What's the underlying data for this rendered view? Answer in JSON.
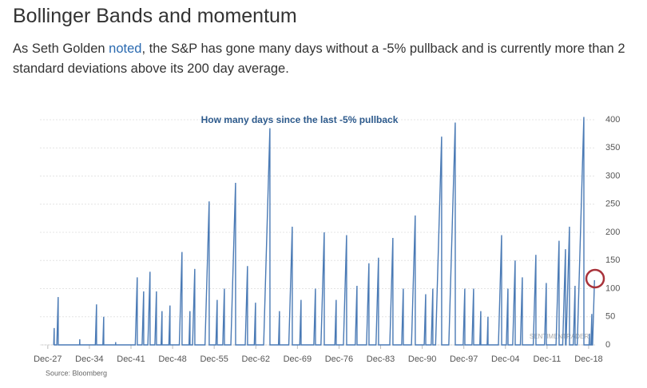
{
  "header": {
    "title": "Bollinger Bands and momentum",
    "paragraph": [
      "As Seth Golden ",
      "noted",
      ", the S&P has gone many days without a -5% pullback and is currently more than 2 standard deviations above its 200 day average."
    ]
  },
  "chart_data": {
    "type": "line",
    "title": "How many days since the last -5% pullback",
    "watermark": "SENTIMENTRADER",
    "source": "Source: Bloomberg",
    "color": "#4a7ab5",
    "grid": true,
    "xlim": [
      1926.6,
      2020
    ],
    "ylim": [
      0,
      400
    ],
    "yticks": [
      0,
      50,
      100,
      150,
      200,
      250,
      300,
      350,
      400
    ],
    "xticks": [
      {
        "value": 1927.92,
        "label": "Dec-27"
      },
      {
        "value": 1934.92,
        "label": "Dec-34"
      },
      {
        "value": 1941.92,
        "label": "Dec-41"
      },
      {
        "value": 1948.92,
        "label": "Dec-48"
      },
      {
        "value": 1955.92,
        "label": "Dec-55"
      },
      {
        "value": 1962.92,
        "label": "Dec-62"
      },
      {
        "value": 1969.92,
        "label": "Dec-69"
      },
      {
        "value": 1976.92,
        "label": "Dec-76"
      },
      {
        "value": 1983.92,
        "label": "Dec-83"
      },
      {
        "value": 1990.92,
        "label": "Dec-90"
      },
      {
        "value": 1997.92,
        "label": "Dec-97"
      },
      {
        "value": 2004.92,
        "label": "Dec-04"
      },
      {
        "value": 2011.92,
        "label": "Dec-11"
      },
      {
        "value": 2018.92,
        "label": "Dec-18"
      }
    ],
    "x": [
      1928.92,
      1929.0,
      1929.01,
      1929.44,
      1929.67,
      1929.68,
      1933.27,
      1933.3,
      1933.31,
      1935.92,
      1936.12,
      1936.13,
      1937.19,
      1937.33,
      1937.34,
      1939.33,
      1939.34,
      1939.35,
      1942.64,
      1942.97,
      1942.98,
      1943.79,
      1944.05,
      1944.06,
      1944.76,
      1945.12,
      1945.13,
      1945.94,
      1946.2,
      1946.21,
      1946.98,
      1947.14,
      1947.15,
      1948.29,
      1948.48,
      1948.49,
      1950.05,
      1950.5,
      1950.51,
      1951.68,
      1951.84,
      1951.85,
      1952.28,
      1952.65,
      1952.66,
      1954.37,
      1955.07,
      1955.08,
      1956.2,
      1956.42,
      1956.43,
      1957.36,
      1957.63,
      1957.64,
      1958.72,
      1959.51,
      1959.52,
      1961.14,
      1961.52,
      1961.53,
      1962.66,
      1962.87,
      1962.88,
      1964.24,
      1965.29,
      1965.3,
      1966.74,
      1966.9,
      1966.91,
      1968.47,
      1969.05,
      1969.06,
      1970.31,
      1970.53,
      1970.54,
      1972.68,
      1972.95,
      1972.96,
      1973.88,
      1974.43,
      1974.44,
      1976.22,
      1976.44,
      1976.45,
      1977.66,
      1978.19,
      1978.2,
      1979.65,
      1979.94,
      1979.95,
      1981.55,
      1981.95,
      1981.96,
      1983.14,
      1983.56,
      1983.57,
      1985.46,
      1985.98,
      1985.99,
      1987.46,
      1987.73,
      1987.74,
      1989.11,
      1989.74,
      1989.75,
      1991.25,
      1991.5,
      1991.51,
      1992.43,
      1992.7,
      1992.71,
      1993.17,
      1994.18,
      1994.19,
      1995.39,
      1996.47,
      1996.48,
      1997.81,
      1998.08,
      1998.09,
      1999.29,
      1999.56,
      1999.57,
      2000.61,
      2000.77,
      2000.78,
      2001.84,
      2001.98,
      2001.99,
      2003.74,
      2004.27,
      2004.28,
      2005.07,
      2005.34,
      2005.35,
      2006.14,
      2006.55,
      2006.56,
      2007.43,
      2007.76,
      2007.77,
      2009.6,
      2010.04,
      2010.05,
      2011.49,
      2011.79,
      2011.8,
      2013.43,
      2013.94,
      2013.95,
      2014.55,
      2015.02,
      2015.03,
      2015.11,
      2015.69,
      2015.7,
      2016.34,
      2016.63,
      2016.64,
      2017.0,
      2018.11,
      2018.12,
      2018.99,
      2019.05,
      2019.06,
      2019.3,
      2019.45,
      2019.46,
      2019.58,
      2019.9
    ],
    "values": [
      0,
      30,
      0,
      0,
      85,
      0,
      0,
      10,
      0,
      0,
      72,
      0,
      0,
      50,
      0,
      0,
      5,
      0,
      0,
      120,
      0,
      0,
      95,
      0,
      0,
      130,
      0,
      0,
      95,
      0,
      0,
      60,
      0,
      0,
      70,
      0,
      0,
      165,
      0,
      0,
      60,
      0,
      0,
      135,
      0,
      0,
      255,
      0,
      0,
      80,
      0,
      0,
      100,
      0,
      0,
      288,
      0,
      0,
      140,
      0,
      0,
      75,
      0,
      0,
      385,
      0,
      0,
      60,
      0,
      0,
      210,
      0,
      0,
      80,
      0,
      0,
      100,
      0,
      0,
      200,
      0,
      0,
      80,
      0,
      0,
      195,
      0,
      0,
      105,
      0,
      0,
      145,
      0,
      0,
      155,
      0,
      0,
      190,
      0,
      0,
      100,
      0,
      0,
      230,
      0,
      0,
      90,
      0,
      0,
      100,
      0,
      0,
      370,
      0,
      0,
      395,
      0,
      0,
      100,
      0,
      0,
      100,
      0,
      0,
      60,
      0,
      0,
      50,
      0,
      0,
      195,
      0,
      0,
      100,
      0,
      0,
      150,
      0,
      0,
      120,
      0,
      0,
      160,
      0,
      0,
      110,
      0,
      0,
      185,
      0,
      0,
      170,
      0,
      0,
      210,
      0,
      0,
      105,
      0,
      0,
      405,
      0,
      0,
      20,
      0,
      0,
      55,
      0,
      0,
      115
    ]
  }
}
